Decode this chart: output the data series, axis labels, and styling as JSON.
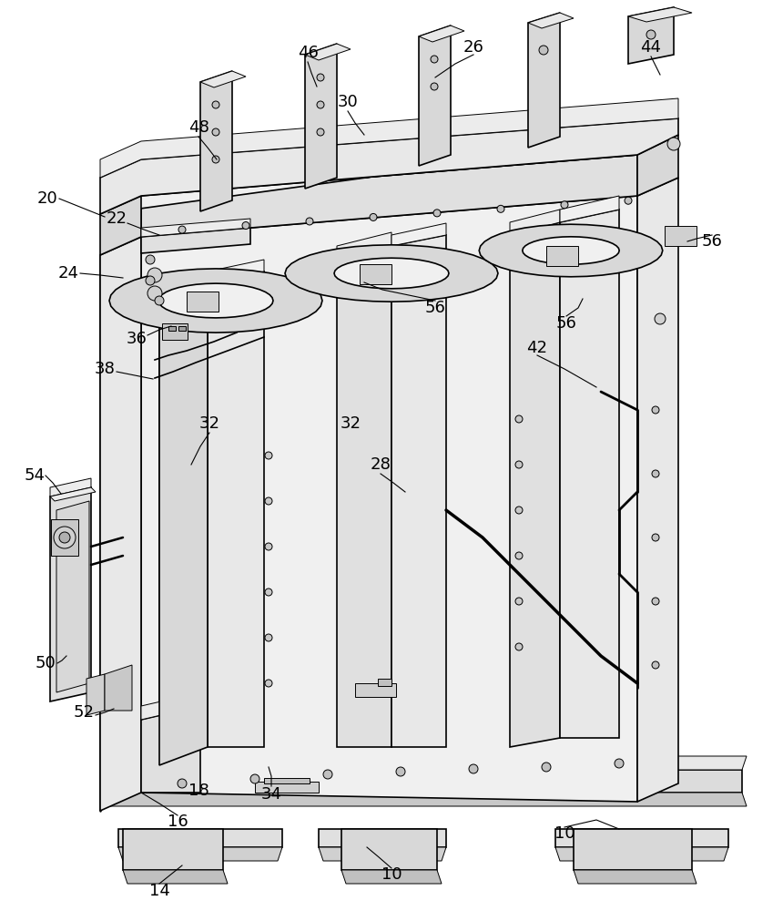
{
  "background_color": "#ffffff",
  "line_color": "#000000",
  "fill_light": "#e8e8e8",
  "fill_medium": "#d0d0d0",
  "fill_dark": "#b8b8b8",
  "figsize": [
    8.6,
    10.0
  ],
  "dpi": 100
}
